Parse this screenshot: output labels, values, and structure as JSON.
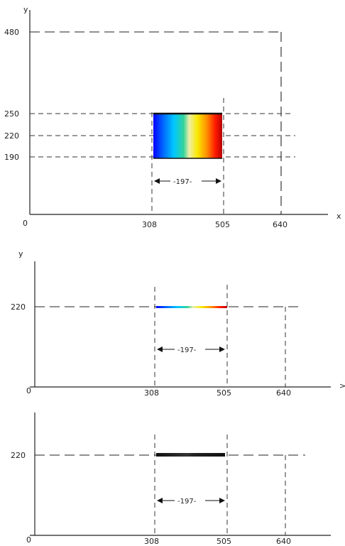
{
  "panels": {
    "top": {
      "axis_y_label": "y",
      "axis_x_label": "x",
      "origin_label": "0",
      "y_ticks": [
        "480",
        "250",
        "220",
        "190"
      ],
      "x_ticks": [
        "308",
        "505",
        "640"
      ],
      "dimension_label": "-197-",
      "fill": "rainbow"
    },
    "middle": {
      "axis_y_label": "y",
      "axis_x_label": ">",
      "origin_label": "0",
      "y_ticks": [
        "220"
      ],
      "x_ticks": [
        "308",
        "505",
        "640"
      ],
      "dimension_label": "-197-",
      "fill": "rainbow-line"
    },
    "bottom": {
      "origin_label": "0",
      "y_ticks": [
        "220"
      ],
      "x_ticks": [
        "308",
        "505",
        "640"
      ],
      "dimension_label": "-197-",
      "fill": "black-line"
    }
  },
  "colors": {
    "axis": "#222222",
    "spectrum": [
      "#0000ff",
      "#0066ff",
      "#00c8ff",
      "#34d399",
      "#eeeeaa",
      "#f9e900",
      "#ff8c00",
      "#ff1a00",
      "#b80000"
    ],
    "bar_dark": "#111111"
  }
}
